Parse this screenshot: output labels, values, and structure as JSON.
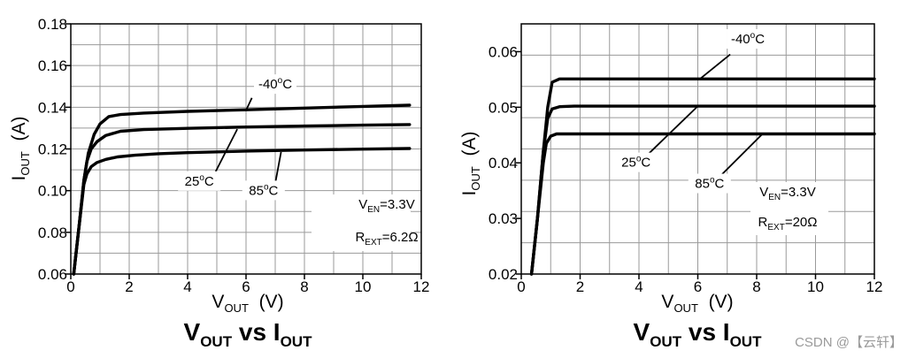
{
  "chart_data": [
    {
      "type": "line",
      "title": {
        "main": "V",
        "sub1": "OUT",
        "mid": " vs I",
        "sub2": "OUT"
      },
      "xlabel": {
        "main": "V",
        "sub": "OUT",
        "unit": "(V)"
      },
      "ylabel": {
        "main": "I",
        "sub": "OUT",
        "unit": "(A)"
      },
      "xlim": [
        0,
        12
      ],
      "ylim": [
        0.06,
        0.18
      ],
      "xticks": [
        0,
        2,
        4,
        6,
        8,
        10,
        12
      ],
      "xtick_labels": [
        "0",
        "2",
        "4",
        "6",
        "8",
        "10",
        "12"
      ],
      "yticks": [
        0.06,
        0.08,
        0.1,
        0.12,
        0.14,
        0.16,
        0.18
      ],
      "ytick_labels": [
        "0.06",
        "0.08",
        "0.10",
        "0.12",
        "0.14",
        "0.16",
        "0.18"
      ],
      "grid": true,
      "series": [
        {
          "name": "-40",
          "unit": "C",
          "x": [
            0.1,
            0.3,
            0.45,
            0.6,
            0.8,
            1.0,
            1.3,
            1.7,
            2.5,
            4,
            6,
            8,
            10,
            11.6
          ],
          "y": [
            0.06,
            0.085,
            0.105,
            0.118,
            0.127,
            0.132,
            0.1355,
            0.1365,
            0.1372,
            0.138,
            0.1388,
            0.1396,
            0.1404,
            0.141
          ]
        },
        {
          "name": "25",
          "unit": "C",
          "x": [
            0.1,
            0.3,
            0.45,
            0.55,
            0.7,
            0.9,
            1.2,
            1.7,
            2.5,
            4,
            6,
            8,
            10,
            11.6
          ],
          "y": [
            0.06,
            0.085,
            0.105,
            0.114,
            0.12,
            0.1235,
            0.1265,
            0.1285,
            0.1293,
            0.1299,
            0.1305,
            0.131,
            0.1314,
            0.1317
          ]
        },
        {
          "name": "85",
          "unit": "C",
          "x": [
            0.1,
            0.3,
            0.45,
            0.55,
            0.7,
            0.9,
            1.2,
            1.6,
            2.2,
            3,
            4,
            6,
            8,
            10,
            11.6
          ],
          "y": [
            0.06,
            0.085,
            0.103,
            0.108,
            0.1115,
            0.1135,
            0.115,
            0.1162,
            0.117,
            0.1177,
            0.1182,
            0.119,
            0.1195,
            0.1199,
            0.1202
          ]
        }
      ],
      "curve_labels": [
        {
          "series": "-40",
          "text": "-40",
          "unit": "C",
          "at": [
            7.0,
            0.149
          ],
          "leader": [
            [
              6.2,
              0.1445
            ],
            [
              6.0,
              0.1385
            ]
          ]
        },
        {
          "series": "25",
          "text": "25",
          "unit": "C",
          "at": [
            4.4,
            0.1025
          ],
          "leader": [
            [
              4.9,
              0.1075
            ],
            [
              5.7,
              0.1295
            ]
          ]
        },
        {
          "series": "85",
          "text": "85",
          "unit": "C",
          "at": [
            6.6,
            0.098
          ],
          "leader": [
            [
              7.0,
              0.1035
            ],
            [
              7.2,
              0.1185
            ]
          ]
        }
      ],
      "conditions": [
        {
          "main": "V",
          "sub": "EN",
          "rest": "=3.3V"
        },
        {
          "main": "R",
          "sub": "EXT",
          "rest": "=6.2Ω"
        }
      ]
    },
    {
      "type": "line",
      "title": {
        "main": "V",
        "sub1": "OUT",
        "mid": " vs I",
        "sub2": "OUT"
      },
      "xlabel": {
        "main": "V",
        "sub": "OUT",
        "unit": "(V)"
      },
      "ylabel": {
        "main": "I",
        "sub": "OUT",
        "unit": "(A)"
      },
      "xlim": [
        0,
        12
      ],
      "ylim": [
        0.02,
        0.065
      ],
      "xticks": [
        0,
        2,
        4,
        6,
        8,
        10,
        12
      ],
      "xtick_labels": [
        "0",
        "2",
        "4",
        "6",
        "8",
        "10",
        "12"
      ],
      "yticks": [
        0.02,
        0.03,
        0.04,
        0.05,
        0.06
      ],
      "ytick_labels": [
        "0.02",
        "0.03",
        "0.04",
        "0.05",
        "0.06"
      ],
      "grid": true,
      "series": [
        {
          "name": "-40",
          "unit": "C",
          "x": [
            0.35,
            0.55,
            0.75,
            0.9,
            1.05,
            1.3,
            1.8,
            3,
            6,
            9,
            12
          ],
          "y": [
            0.02,
            0.03,
            0.042,
            0.05,
            0.0545,
            0.0551,
            0.0551,
            0.0551,
            0.0551,
            0.0551,
            0.0551
          ]
        },
        {
          "name": "25",
          "unit": "C",
          "x": [
            0.35,
            0.55,
            0.75,
            0.9,
            1.05,
            1.3,
            1.8,
            3,
            6,
            9,
            12
          ],
          "y": [
            0.02,
            0.03,
            0.042,
            0.048,
            0.0497,
            0.0501,
            0.0502,
            0.0502,
            0.0502,
            0.0502,
            0.0502
          ]
        },
        {
          "name": "85",
          "unit": "C",
          "x": [
            0.35,
            0.55,
            0.75,
            0.85,
            1.0,
            1.2,
            1.8,
            3,
            6,
            9,
            12
          ],
          "y": [
            0.02,
            0.03,
            0.04,
            0.0435,
            0.0448,
            0.0452,
            0.0452,
            0.0452,
            0.0452,
            0.0452,
            0.0452
          ]
        }
      ],
      "curve_labels": [
        {
          "series": "-40",
          "text": "-40",
          "unit": "C",
          "at": [
            7.7,
            0.0615
          ],
          "leader": [
            [
              7.1,
              0.0595
            ],
            [
              6.1,
              0.0552
            ]
          ]
        },
        {
          "series": "25",
          "text": "25",
          "unit": "C",
          "at": [
            3.9,
            0.0393
          ],
          "leader": [
            [
              4.3,
              0.0415
            ],
            [
              6.0,
              0.0502
            ]
          ]
        },
        {
          "series": "85",
          "text": "85",
          "unit": "C",
          "at": [
            6.4,
            0.0355
          ],
          "leader": [
            [
              6.7,
              0.0373
            ],
            [
              8.2,
              0.0452
            ]
          ]
        }
      ],
      "conditions": [
        {
          "main": "V",
          "sub": "EN",
          "rest": "=3.3V"
        },
        {
          "main": "R",
          "sub": "EXT",
          "rest": "=20Ω"
        }
      ]
    }
  ],
  "watermark": "CSDN @【云轩】"
}
